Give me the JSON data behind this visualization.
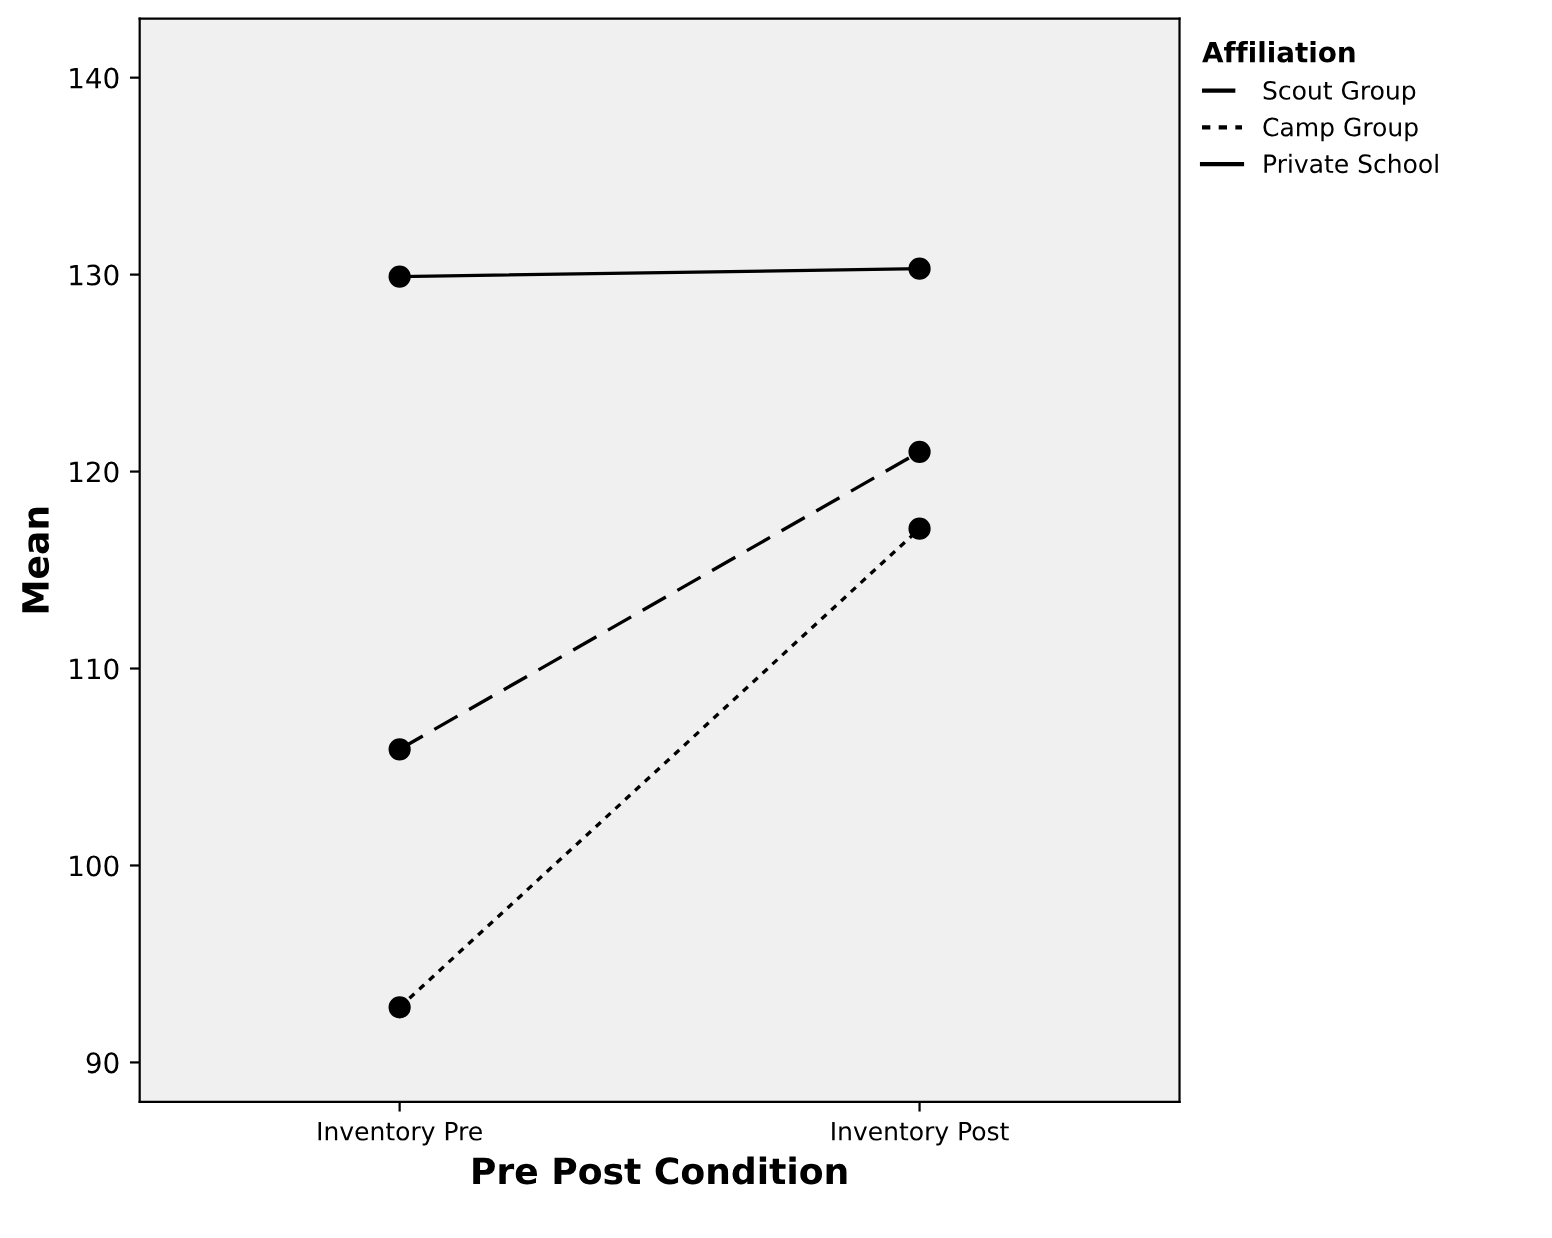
{
  "chart_data": {
    "type": "line",
    "xlabel": "Pre Post Condition",
    "ylabel": "Mean",
    "legend_title": "Affiliation",
    "legend": "top right",
    "marker": "circle",
    "grid": false,
    "categories": [
      "Inventory Pre",
      "Inventory Post"
    ],
    "ylim": [
      88,
      143
    ],
    "yticks": [
      90,
      100,
      110,
      120,
      130,
      140
    ],
    "series": [
      {
        "name": "Scout Group",
        "color": "#000000",
        "line_style": "dashed",
        "values": [
          105.9,
          121.0
        ]
      },
      {
        "name": "Camp Group",
        "color": "#000000",
        "line_style": "dotted",
        "values": [
          92.8,
          117.1
        ]
      },
      {
        "name": "Private School",
        "color": "#000000",
        "line_style": "solid",
        "values": [
          129.9,
          130.3
        ]
      }
    ]
  }
}
